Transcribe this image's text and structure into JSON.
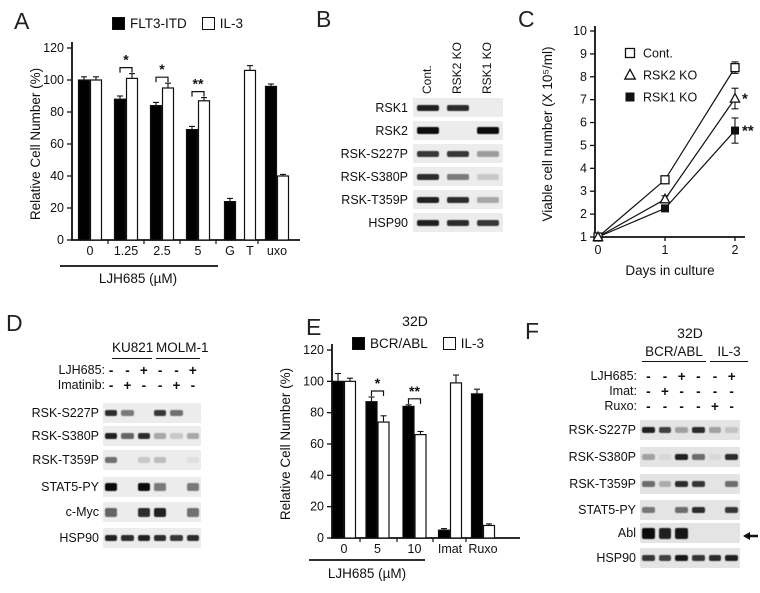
{
  "panel_labels": {
    "A": "A",
    "B": "B",
    "C": "C",
    "D": "D",
    "E": "E",
    "F": "F"
  },
  "chart_data": [
    {
      "id": "A",
      "type": "bar",
      "title": "",
      "ylabel": "Relative Cell Number (%)",
      "ylim": [
        0,
        120
      ],
      "yticks": [
        0,
        20,
        40,
        60,
        80,
        100,
        120
      ],
      "categories": [
        "0",
        "1.25",
        "2.5",
        "5",
        "G T",
        "uxo"
      ],
      "series": [
        {
          "name": "FLT3-ITD",
          "color": "#000000",
          "values": [
            100,
            88,
            84,
            69,
            24,
            96
          ],
          "errors": [
            2,
            2,
            2,
            2,
            2,
            1.5
          ]
        },
        {
          "name": "IL-3",
          "color": "#ffffff",
          "values": [
            100,
            101,
            95,
            87,
            106,
            40
          ],
          "errors": [
            2,
            3,
            3,
            2,
            3,
            1
          ]
        }
      ],
      "significance": [
        {
          "group": 1,
          "label": "*"
        },
        {
          "group": 2,
          "label": "*"
        },
        {
          "group": 3,
          "label": "**"
        }
      ],
      "group_axis_label": "LJH685 (µM)",
      "legend_position": "top",
      "grid": false
    },
    {
      "id": "E",
      "type": "bar",
      "title": "32D",
      "ylabel": "Relative Cell Number (%)",
      "ylim": [
        0,
        120
      ],
      "yticks": [
        0,
        20,
        40,
        60,
        80,
        100,
        120
      ],
      "categories": [
        "0",
        "5",
        "10",
        "Imat",
        "Ruxo"
      ],
      "series": [
        {
          "name": "BCR/ABL",
          "color": "#000000",
          "values": [
            100,
            87,
            84,
            5,
            92
          ],
          "errors": [
            5,
            3,
            1,
            1,
            3
          ]
        },
        {
          "name": "IL-3",
          "color": "#ffffff",
          "values": [
            100,
            74,
            66,
            99,
            8
          ],
          "errors": [
            2,
            4,
            2,
            5,
            1
          ]
        }
      ],
      "significance": [
        {
          "group": 1,
          "label": "*"
        },
        {
          "group": 2,
          "label": "**"
        }
      ],
      "group_axis_label": "LJH685 (µM)",
      "legend_position": "top",
      "grid": false
    },
    {
      "id": "C",
      "type": "line",
      "title": "",
      "xlabel": "Days in culture",
      "ylabel": "Viable cell number (X 10⁵/ml)",
      "x": [
        0,
        1,
        2
      ],
      "xticklabels": [
        "0",
        "1",
        "2"
      ],
      "ylim": [
        1,
        10
      ],
      "yticks": [
        1,
        2,
        3,
        4,
        5,
        6,
        7,
        8,
        9,
        10
      ],
      "series": [
        {
          "name": "Cont.",
          "marker": "open-square",
          "values": [
            1,
            3.5,
            8.4
          ],
          "errors": [
            0,
            0.15,
            0.25
          ],
          "annotation": ""
        },
        {
          "name": "RSK2 KO",
          "marker": "open-triangle",
          "values": [
            1,
            2.65,
            7.05
          ],
          "errors": [
            0,
            0.15,
            0.45
          ],
          "annotation": "*"
        },
        {
          "name": "RSK1 KO",
          "marker": "filled-square",
          "values": [
            1,
            2.25,
            5.65
          ],
          "errors": [
            0,
            0.12,
            0.55
          ],
          "annotation": "**"
        }
      ],
      "legend_position": "upper-left",
      "grid": false
    }
  ],
  "blots": {
    "B": {
      "lanes": [
        "Cont.",
        "RSK2 KO",
        "RSK1 KO"
      ],
      "rows": [
        {
          "label": "RSK1",
          "bands": [
            0.9,
            0.85,
            0
          ]
        },
        {
          "label": "RSK2",
          "bands": [
            1,
            0,
            1
          ],
          "h": 7
        },
        {
          "label": "RSK-S227P",
          "bands": [
            0.8,
            0.8,
            0.35
          ]
        },
        {
          "label": "RSK-S380P",
          "bands": [
            0.85,
            0.5,
            0.15
          ]
        },
        {
          "label": "RSK-T359P",
          "bands": [
            0.9,
            0.85,
            0.3
          ]
        },
        {
          "label": "HSP90",
          "bands": [
            0.9,
            0.85,
            0.8
          ]
        }
      ]
    },
    "D": {
      "groups": [
        {
          "label": "KU821"
        },
        {
          "label": "MOLM-1"
        }
      ],
      "treatments": [
        {
          "name": "LJH685:",
          "values": [
            "-",
            "-",
            "+",
            "-",
            "-",
            "+"
          ]
        },
        {
          "name": "Imatinib:",
          "values": [
            "-",
            "+",
            "-",
            "-",
            "+",
            "-"
          ]
        }
      ],
      "rows": [
        {
          "label": "RSK-S227P",
          "bands": [
            0.85,
            0.5,
            0,
            0.8,
            0.55,
            0
          ]
        },
        {
          "label": "RSK-S380P",
          "bands": [
            0.9,
            0.6,
            0.85,
            0.3,
            0.15,
            0.3
          ]
        },
        {
          "label": "RSK-T359P",
          "bands": [
            0.55,
            0,
            0.15,
            0.2,
            0,
            0.05
          ]
        },
        {
          "label": "STAT5-PY",
          "bands": [
            1,
            0,
            1,
            0.5,
            0,
            0.5
          ],
          "h": 8
        },
        {
          "label": "c-Myc",
          "bands": [
            0.6,
            0,
            0.85,
            0.9,
            0,
            0.55
          ],
          "h": 9
        },
        {
          "label": "HSP90",
          "bands": [
            0.9,
            0.85,
            0.9,
            0.85,
            0.8,
            0.85
          ]
        }
      ]
    },
    "F": {
      "title": "32D",
      "groups": [
        {
          "label": "BCR/ABL"
        },
        {
          "label": "IL-3"
        }
      ],
      "treatments": [
        {
          "name": "LJH685:",
          "values": [
            "-",
            "-",
            "+",
            "-",
            "-",
            "+"
          ]
        },
        {
          "name": "Imat:",
          "values": [
            "-",
            "+",
            "-",
            "-",
            "-",
            "-"
          ]
        },
        {
          "name": "Ruxo:",
          "values": [
            "-",
            "-",
            "-",
            "-",
            "+",
            "-"
          ]
        }
      ],
      "rows": [
        {
          "label": "RSK-S227P",
          "bands": [
            0.9,
            0.75,
            0.3,
            0.85,
            0.3,
            0.15
          ]
        },
        {
          "label": "RSK-S380P",
          "bands": [
            0.3,
            0.05,
            0.9,
            0.55,
            0.05,
            0.85
          ]
        },
        {
          "label": "RSK-T359P",
          "bands": [
            0.55,
            0.25,
            0.85,
            0.8,
            0,
            0.55
          ]
        },
        {
          "label": "STAT5-PY",
          "bands": [
            0.5,
            0,
            0.55,
            0.85,
            0,
            0.8
          ]
        },
        {
          "label": "Abl",
          "bands": [
            1,
            0.9,
            0.95,
            0,
            0,
            0
          ],
          "h": 11,
          "arrow": true
        },
        {
          "label": "HSP90",
          "bands": [
            0.8,
            0.75,
            0.95,
            0.8,
            0.85,
            0.9
          ]
        }
      ]
    }
  },
  "icons": {
    "abl_pointer": "left-arrow"
  }
}
